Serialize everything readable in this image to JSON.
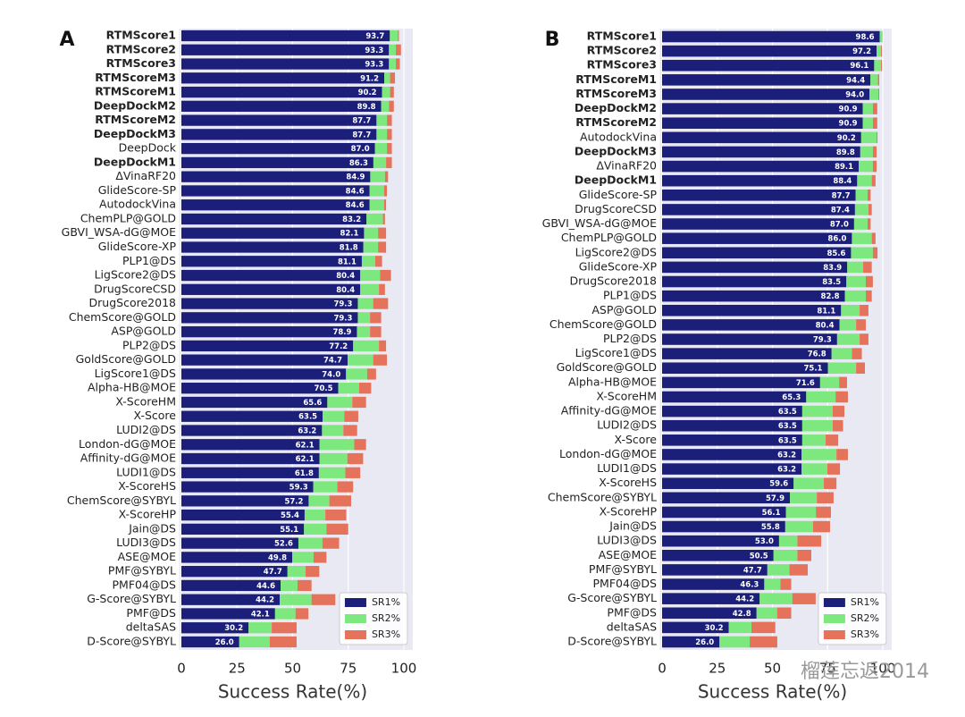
{
  "chart_data": [
    {
      "type": "bar",
      "orientation": "horizontal",
      "stacked": true,
      "panel_label": "A",
      "categories": [
        "RTMScore1",
        "RTMScore2",
        "RTMScore3",
        "RTMScoreM3",
        "RTMScoreM1",
        "DeepDockM2",
        "RTMScoreM2",
        "DeepDockM3",
        "DeepDock",
        "DeepDockM1",
        "ΔVinaRF20",
        "GlideScore-SP",
        "AutodockVina",
        "ChemPLP@GOLD",
        "GBVI_WSA-dG@MOE",
        "GlideScore-XP",
        "PLP1@DS",
        "LigScore2@DS",
        "DrugScoreCSD",
        "DrugScore2018",
        "ChemScore@GOLD",
        "ASP@GOLD",
        "PLP2@DS",
        "GoldScore@GOLD",
        "LigScore1@DS",
        "Alpha-HB@MOE",
        "X-ScoreHM",
        "X-Score",
        "LUDI2@DS",
        "London-dG@MOE",
        "Affinity-dG@MOE",
        "LUDI1@DS",
        "X-ScoreHS",
        "ChemScore@SYBYL",
        "X-ScoreHP",
        "Jain@DS",
        "LUDI3@DS",
        "ASE@MOE",
        "PMF@SYBYL",
        "PMF04@DS",
        "G-Score@SYBYL",
        "PMF@DS",
        "deltaSAS",
        "D-Score@SYBYL"
      ],
      "bold": [
        true,
        true,
        true,
        true,
        true,
        true,
        true,
        true,
        false,
        true,
        false,
        false,
        false,
        false,
        false,
        false,
        false,
        false,
        false,
        false,
        false,
        false,
        false,
        false,
        false,
        false,
        false,
        false,
        false,
        false,
        false,
        false,
        false,
        false,
        false,
        false,
        false,
        false,
        false,
        false,
        false,
        false,
        false,
        false
      ],
      "series": [
        {
          "name": "SR1%",
          "color": "#1b1f7a",
          "values": [
            93.7,
            93.3,
            93.3,
            91.2,
            90.2,
            89.8,
            87.7,
            87.7,
            87.0,
            86.3,
            84.9,
            84.6,
            84.6,
            83.2,
            82.1,
            81.8,
            81.1,
            80.4,
            80.4,
            79.3,
            79.3,
            78.9,
            77.2,
            74.7,
            74.0,
            70.5,
            65.6,
            63.5,
            63.2,
            62.1,
            62.1,
            61.8,
            59.3,
            57.2,
            55.4,
            55.1,
            52.6,
            49.8,
            47.7,
            44.6,
            44.2,
            42.1,
            30.2,
            26.0
          ],
          "value_labels": [
            "93.7",
            "93.3",
            "93.3",
            "91.2",
            "90.2",
            "89.8",
            "87.7",
            "87.7",
            "87.0",
            "86.3",
            "84.9",
            "84.6",
            "84.6",
            "83.2",
            "82.1",
            "81.8",
            "81.1",
            "80.4",
            "80.4",
            "79.3",
            "79.3",
            "78.9",
            "77.2",
            "74.7",
            "74.0",
            "70.5",
            "65.6",
            "63.5",
            "63.2",
            "62.1",
            "62.1",
            "61.8",
            "59.3",
            "57.2",
            "55.4",
            "55.1",
            "52.6",
            "49.8",
            "47.7",
            "44.6",
            "44.2",
            "42.1",
            "30.2",
            "26.0"
          ]
        },
        {
          "name": "SR2%",
          "color": "#7de87d",
          "values": [
            3.6,
            3.1,
            3.1,
            2.6,
            3.6,
            3.5,
            4.7,
            4.7,
            5.4,
            5.7,
            6.6,
            6.5,
            6.5,
            7.4,
            6.3,
            6.6,
            6.0,
            8.9,
            8.4,
            6.9,
            5.5,
            5.9,
            11.6,
            11.5,
            9.5,
            9.4,
            11.2,
            9.7,
            9.6,
            15.6,
            12.5,
            11.9,
            10.8,
            9.3,
            9.3,
            10.1,
            10.8,
            9.6,
            8.1,
            7.6,
            14.3,
            9.2,
            10.4,
            13.7
          ]
        },
        {
          "name": "SR3%",
          "color": "#e5735c",
          "values": [
            0.5,
            2.3,
            1.8,
            2.2,
            1.7,
            2.2,
            2.2,
            2.2,
            2.2,
            2.6,
            1.4,
            1.3,
            0.9,
            0.9,
            3.6,
            3.6,
            3.1,
            4.9,
            2.7,
            6.7,
            5.0,
            5.0,
            3.2,
            6.2,
            4.0,
            5.4,
            6.2,
            6.3,
            6.2,
            5.3,
            7.1,
            6.7,
            7.1,
            9.8,
            9.4,
            9.8,
            7.5,
            5.8,
            6.2,
            6.3,
            10.7,
            5.8,
            11.2,
            12.1
          ]
        }
      ],
      "xlim": [
        -1,
        104
      ],
      "xticks": [
        0,
        25,
        50,
        75,
        100
      ],
      "xlabel": "Success Rate(%)",
      "grid": true,
      "legend": "lower right"
    },
    {
      "type": "bar",
      "orientation": "horizontal",
      "stacked": true,
      "panel_label": "B",
      "categories": [
        "RTMScore1",
        "RTMScore2",
        "RTMScore3",
        "RTMScoreM1",
        "RTMScoreM3",
        "DeepDockM2",
        "RTMScoreM2",
        "AutodockVina",
        "DeepDockM3",
        "ΔVinaRF20",
        "DeepDockM1",
        "GlideScore-SP",
        "DrugScoreCSD",
        "GBVI_WSA-dG@MOE",
        "ChemPLP@GOLD",
        "LigScore2@DS",
        "GlideScore-XP",
        "DrugScore2018",
        "PLP1@DS",
        "ASP@GOLD",
        "ChemScore@GOLD",
        "PLP2@DS",
        "LigScore1@DS",
        "GoldScore@GOLD",
        "Alpha-HB@MOE",
        "X-ScoreHM",
        "Affinity-dG@MOE",
        "LUDI2@DS",
        "X-Score",
        "London-dG@MOE",
        "LUDI1@DS",
        "X-ScoreHS",
        "ChemScore@SYBYL",
        "X-ScoreHP",
        "Jain@DS",
        "LUDI3@DS",
        "ASE@MOE",
        "PMF@SYBYL",
        "PMF04@DS",
        "G-Score@SYBYL",
        "PMF@DS",
        "deltaSAS",
        "D-Score@SYBYL"
      ],
      "bold": [
        true,
        true,
        true,
        true,
        true,
        true,
        true,
        false,
        true,
        false,
        true,
        false,
        false,
        false,
        false,
        false,
        false,
        false,
        false,
        false,
        false,
        false,
        false,
        false,
        false,
        false,
        false,
        false,
        false,
        false,
        false,
        false,
        false,
        false,
        false,
        false,
        false,
        false,
        false,
        false,
        false,
        false,
        false
      ],
      "series": [
        {
          "name": "SR1%",
          "color": "#1b1f7a",
          "values": [
            98.6,
            97.2,
            96.1,
            94.4,
            94.0,
            90.9,
            90.9,
            90.2,
            89.8,
            89.1,
            88.4,
            87.7,
            87.4,
            87.0,
            86.0,
            85.6,
            83.9,
            83.5,
            82.8,
            81.1,
            80.4,
            79.3,
            76.8,
            75.1,
            71.6,
            65.3,
            63.5,
            63.5,
            63.5,
            63.2,
            63.2,
            59.6,
            57.9,
            56.1,
            55.8,
            53.0,
            50.5,
            47.7,
            46.3,
            44.2,
            42.8,
            30.2,
            26.0
          ],
          "value_labels": [
            "98.6",
            "97.2",
            "96.1",
            "94.4",
            "94.0",
            "90.9",
            "90.9",
            "90.2",
            "89.8",
            "89.1",
            "88.4",
            "87.7",
            "87.4",
            "87.0",
            "86.0",
            "85.6",
            "83.9",
            "83.5",
            "82.8",
            "81.1",
            "80.4",
            "79.3",
            "76.8",
            "75.1",
            "71.6",
            "65.3",
            "63.5",
            "63.5",
            "63.5",
            "63.2",
            "63.2",
            "59.6",
            "57.9",
            "56.1",
            "55.8",
            "53.0",
            "50.5",
            "47.7",
            "46.3",
            "44.2",
            "42.8",
            "30.2",
            "26.0"
          ]
        },
        {
          "name": "SR2%",
          "color": "#7de87d",
          "values": [
            1.0,
            2.0,
            3.1,
            3.4,
            4.0,
            4.6,
            4.6,
            7.0,
            5.7,
            6.4,
            6.6,
            5.4,
            6.1,
            6.1,
            9.0,
            9.9,
            7.2,
            8.8,
            9.5,
            8.4,
            7.5,
            10.2,
            9.2,
            12.8,
            8.6,
            13.3,
            13.8,
            13.8,
            10.6,
            15.8,
            11.7,
            13.7,
            12.2,
            13.6,
            12.6,
            8.3,
            10.8,
            10.0,
            7.3,
            14.8,
            9.3,
            10.3,
            13.7
          ]
        },
        {
          "name": "SR3%",
          "color": "#e5735c",
          "values": [
            0.2,
            0.4,
            0.4,
            0.6,
            0.4,
            2.0,
            2.0,
            0.4,
            1.7,
            1.7,
            1.7,
            1.4,
            1.5,
            1.4,
            1.7,
            2.1,
            3.9,
            3.2,
            2.7,
            4.0,
            4.4,
            4.0,
            4.5,
            4.0,
            3.6,
            5.6,
            5.3,
            4.7,
            5.7,
            5.2,
            5.7,
            5.7,
            7.6,
            6.8,
            7.7,
            10.8,
            6.3,
            8.3,
            4.9,
            10.6,
            6.4,
            10.8,
            12.5
          ]
        }
      ],
      "xlim": [
        -1,
        104
      ],
      "xticks": [
        0,
        25,
        50,
        75,
        100
      ],
      "xlabel": "Success Rate(%)",
      "grid": true,
      "legend": "lower right"
    }
  ],
  "watermark": "榴莲忘返2014"
}
